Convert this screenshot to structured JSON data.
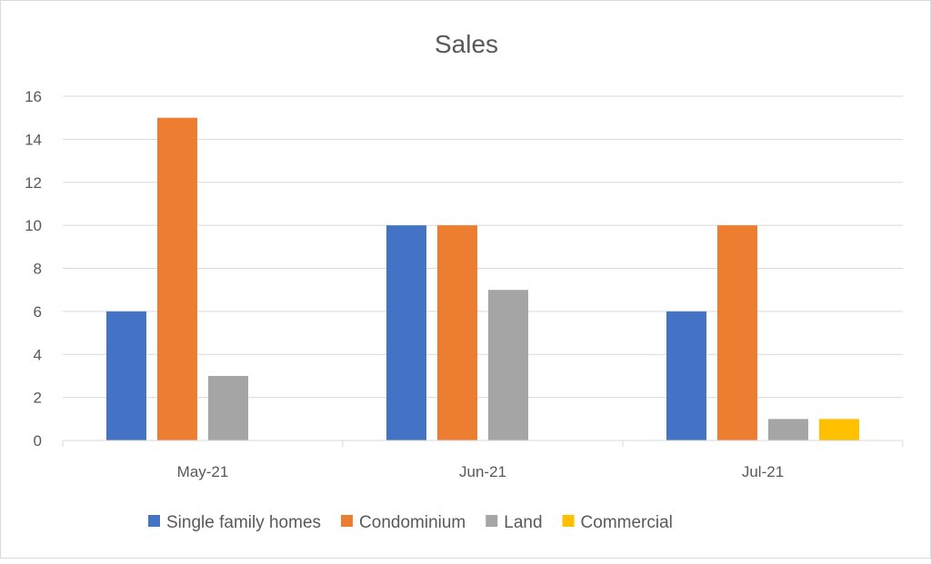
{
  "chart_data": {
    "type": "bar",
    "title": "Sales",
    "categories": [
      "May-21",
      "Jun-21",
      "Jul-21"
    ],
    "series": [
      {
        "name": "Single family homes",
        "color": "#4472c4",
        "values": [
          6,
          10,
          6
        ]
      },
      {
        "name": "Condominium",
        "color": "#ed7d31",
        "values": [
          15,
          10,
          10
        ]
      },
      {
        "name": "Land",
        "color": "#a5a5a5",
        "values": [
          3,
          7,
          1
        ]
      },
      {
        "name": "Commercial",
        "color": "#ffc000",
        "values": [
          0,
          0,
          1
        ]
      }
    ],
    "ylim": [
      0,
      16
    ],
    "yticks": [
      0,
      2,
      4,
      6,
      8,
      10,
      12,
      14,
      16
    ],
    "grid": true,
    "legend": "bottom",
    "xlabel": "",
    "ylabel": ""
  }
}
